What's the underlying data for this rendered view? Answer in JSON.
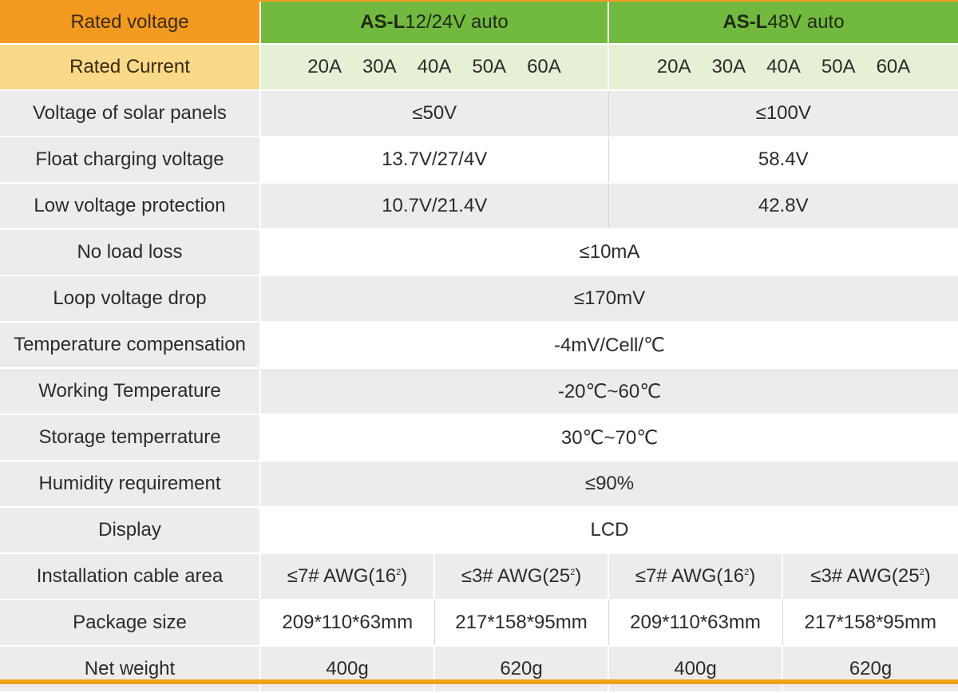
{
  "header": {
    "rated_voltage_label": "Rated voltage",
    "rated_current_label": "Rated Current",
    "model_a": {
      "prefix": "AS-L",
      "suffix": "12/24V auto"
    },
    "model_b": {
      "prefix": "AS-L",
      "suffix": "48V auto"
    },
    "currents_a": [
      "20A",
      "30A",
      "40A",
      "50A",
      "60A"
    ],
    "currents_b": [
      "20A",
      "30A",
      "40A",
      "50A",
      "60A"
    ]
  },
  "rows": {
    "solar_voltage": {
      "label": "Voltage of solar panels",
      "a": "≤50V",
      "b": "≤100V"
    },
    "float_voltage": {
      "label": "Float charging voltage",
      "a": "13.7V/27/4V",
      "b": "58.4V"
    },
    "low_voltage": {
      "label": "Low voltage protection",
      "a": "10.7V/21.4V",
      "b": "42.8V"
    },
    "no_load": {
      "label": "No load loss",
      "value": "≤10mA"
    },
    "loop_drop": {
      "label": "Loop voltage drop",
      "value": "≤170mV"
    },
    "temp_comp": {
      "label": "Temperature compensation",
      "value": "-4mV/Cell/℃"
    },
    "working_temp": {
      "label": "Working Temperature",
      "value": "-20℃~60℃"
    },
    "storage_temp": {
      "label": "Storage temperrature",
      "value": "30℃~70℃"
    },
    "humidity": {
      "label": "Humidity requirement",
      "value": "≤90%"
    },
    "display": {
      "label": "Display",
      "value": "LCD"
    },
    "cable": {
      "label": "Installation cable area",
      "c1": "≤7# AWG(16",
      "c1_sup": "2",
      "c1_end": ")",
      "c2": "≤3# AWG(25",
      "c2_sup": "2",
      "c2_end": ")",
      "c3": "≤7# AWG(16",
      "c3_sup": "2",
      "c3_end": ")",
      "c4": "≤3# AWG(25",
      "c4_sup": "2",
      "c4_end": ")"
    },
    "package": {
      "label": "Package size",
      "c1": "209*110*63mm",
      "c2": "217*158*95mm",
      "c3": "209*110*63mm",
      "c4": "217*158*95mm"
    },
    "weight": {
      "label": "Net weight",
      "c1": "400g",
      "c2": "620g",
      "c3": "400g",
      "c4": "620g"
    }
  },
  "colors": {
    "orange": "#f29a1f",
    "light_orange": "#fad989",
    "green": "#72b93f",
    "light_green": "#e6f0d4",
    "row_gray": "#ececec"
  }
}
